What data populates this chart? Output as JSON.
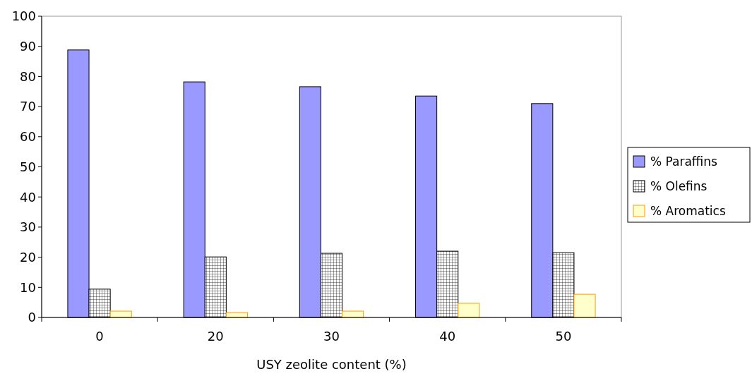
{
  "chart_data": {
    "type": "bar",
    "xlabel": "USY zeolite content (%)",
    "categories": [
      "0",
      "20",
      "30",
      "40",
      "50"
    ],
    "series": [
      {
        "name": "% Paraffins",
        "color": "#9999ff",
        "values": [
          88.8,
          78.2,
          76.6,
          73.5,
          71.0
        ]
      },
      {
        "name": "% Olefins",
        "color": "#000000",
        "values": [
          9.4,
          20.1,
          21.3,
          22.0,
          21.5
        ]
      },
      {
        "name": "% Aromatics",
        "color": "#ffffcc",
        "values": [
          2.1,
          1.6,
          2.1,
          4.7,
          7.7
        ]
      }
    ],
    "ylim": [
      0,
      100
    ],
    "yticks": [
      0,
      10,
      20,
      30,
      40,
      50,
      60,
      70,
      80,
      90,
      100
    ],
    "grid": false,
    "legend": "right"
  }
}
